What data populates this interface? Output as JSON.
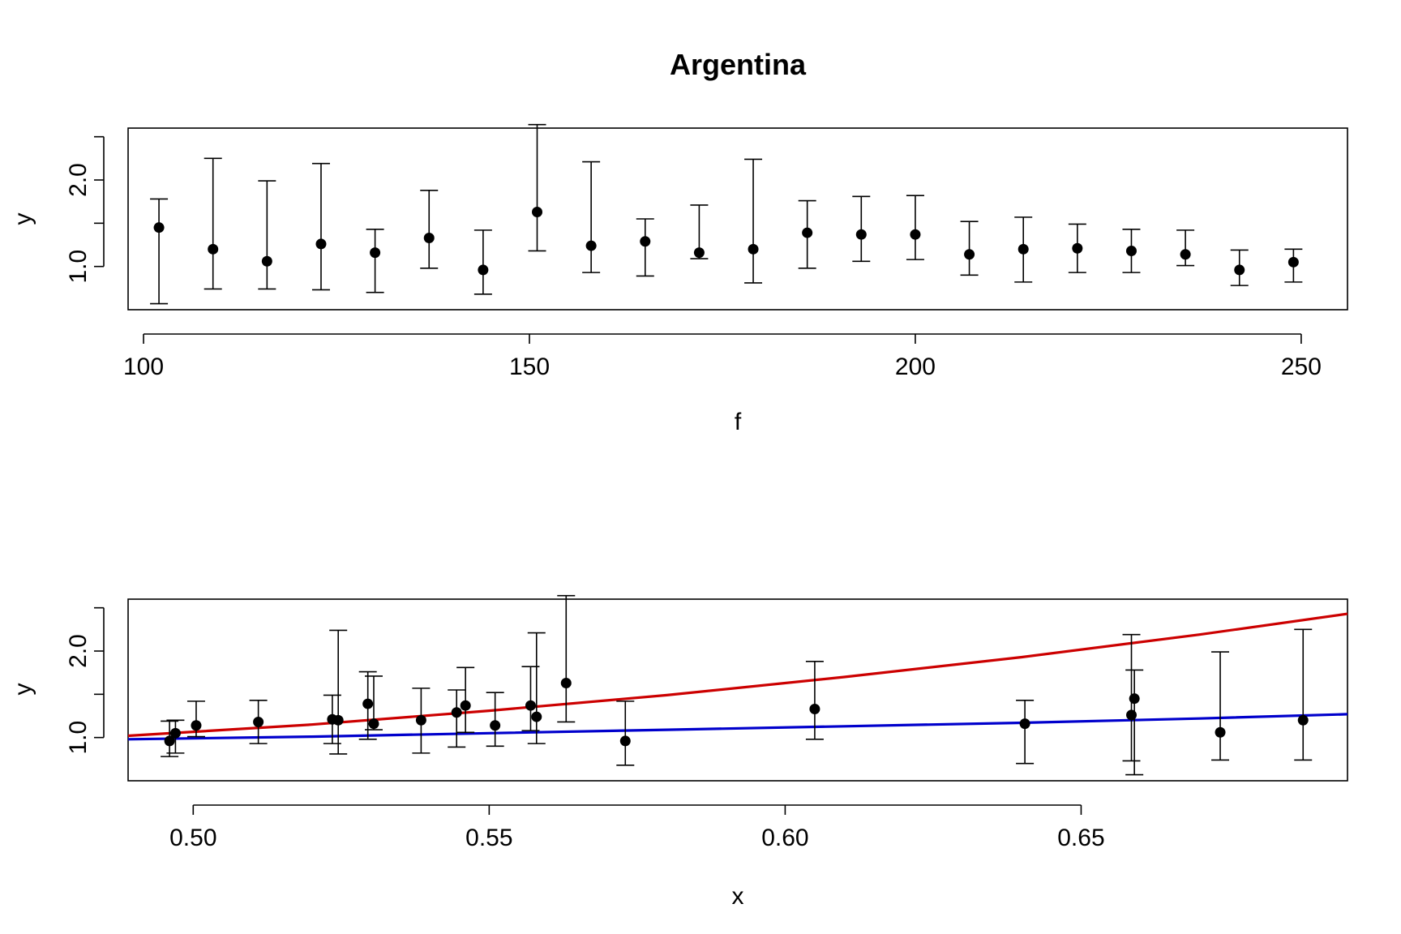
{
  "chart_data": [
    {
      "type": "scatter",
      "title": "Argentina",
      "xlabel": "f",
      "ylabel": "y",
      "xlim": [
        98,
        256
      ],
      "ylim": [
        0.5,
        2.6
      ],
      "xticks": [
        100,
        150,
        200,
        250
      ],
      "xtick_labels": [
        "100",
        "150",
        "200",
        "250"
      ],
      "yticks": [
        1.0,
        1.5,
        2.0,
        2.5
      ],
      "ytick_labels": [
        "1.0",
        "",
        "2.0",
        ""
      ],
      "grid": false,
      "error_bars": true,
      "points": [
        {
          "x": 102,
          "y": 1.45,
          "lo": 0.57,
          "hi": 1.78
        },
        {
          "x": 109,
          "y": 1.2,
          "lo": 0.74,
          "hi": 2.25
        },
        {
          "x": 116,
          "y": 1.06,
          "lo": 0.74,
          "hi": 1.99
        },
        {
          "x": 123,
          "y": 1.26,
          "lo": 0.73,
          "hi": 2.19
        },
        {
          "x": 130,
          "y": 1.16,
          "lo": 0.7,
          "hi": 1.43
        },
        {
          "x": 137,
          "y": 1.33,
          "lo": 0.98,
          "hi": 1.88
        },
        {
          "x": 144,
          "y": 0.96,
          "lo": 0.68,
          "hi": 1.42
        },
        {
          "x": 151,
          "y": 1.63,
          "lo": 1.18,
          "hi": 2.64
        },
        {
          "x": 158,
          "y": 1.24,
          "lo": 0.93,
          "hi": 2.21
        },
        {
          "x": 165,
          "y": 1.29,
          "lo": 0.89,
          "hi": 1.55
        },
        {
          "x": 172,
          "y": 1.16,
          "lo": 1.09,
          "hi": 1.71
        },
        {
          "x": 179,
          "y": 1.2,
          "lo": 0.81,
          "hi": 2.24
        },
        {
          "x": 186,
          "y": 1.39,
          "lo": 0.98,
          "hi": 1.76
        },
        {
          "x": 193,
          "y": 1.37,
          "lo": 1.06,
          "hi": 1.81
        },
        {
          "x": 200,
          "y": 1.37,
          "lo": 1.08,
          "hi": 1.82
        },
        {
          "x": 207,
          "y": 1.14,
          "lo": 0.9,
          "hi": 1.52
        },
        {
          "x": 214,
          "y": 1.2,
          "lo": 0.82,
          "hi": 1.57
        },
        {
          "x": 221,
          "y": 1.21,
          "lo": 0.93,
          "hi": 1.49
        },
        {
          "x": 228,
          "y": 1.18,
          "lo": 0.93,
          "hi": 1.43
        },
        {
          "x": 235,
          "y": 1.14,
          "lo": 1.01,
          "hi": 1.42
        },
        {
          "x": 242,
          "y": 0.96,
          "lo": 0.78,
          "hi": 1.19
        },
        {
          "x": 249,
          "y": 1.05,
          "lo": 0.82,
          "hi": 1.2
        }
      ]
    },
    {
      "type": "scatter",
      "title": "",
      "xlabel": "x",
      "ylabel": "y",
      "xlim": [
        0.489,
        0.695
      ],
      "ylim": [
        0.5,
        2.6
      ],
      "xticks": [
        0.5,
        0.55,
        0.6,
        0.65
      ],
      "xtick_labels": [
        "0.50",
        "0.55",
        "0.60",
        "0.65"
      ],
      "yticks": [
        1.0,
        1.5,
        2.0,
        2.5
      ],
      "ytick_labels": [
        "1.0",
        "",
        "2.0",
        ""
      ],
      "grid": false,
      "error_bars": true,
      "points": [
        {
          "x": 0.496,
          "y": 0.96,
          "lo": 0.78,
          "hi": 1.19
        },
        {
          "x": 0.497,
          "y": 1.05,
          "lo": 0.82,
          "hi": 1.2
        },
        {
          "x": 0.5005,
          "y": 1.14,
          "lo": 1.01,
          "hi": 1.42
        },
        {
          "x": 0.511,
          "y": 1.18,
          "lo": 0.93,
          "hi": 1.43
        },
        {
          "x": 0.5235,
          "y": 1.21,
          "lo": 0.93,
          "hi": 1.49
        },
        {
          "x": 0.5245,
          "y": 1.2,
          "lo": 0.81,
          "hi": 2.24
        },
        {
          "x": 0.5295,
          "y": 1.39,
          "lo": 0.98,
          "hi": 1.76
        },
        {
          "x": 0.5305,
          "y": 1.16,
          "lo": 1.09,
          "hi": 1.71
        },
        {
          "x": 0.5385,
          "y": 1.2,
          "lo": 0.82,
          "hi": 1.57
        },
        {
          "x": 0.5445,
          "y": 1.29,
          "lo": 0.89,
          "hi": 1.55
        },
        {
          "x": 0.546,
          "y": 1.37,
          "lo": 1.06,
          "hi": 1.81
        },
        {
          "x": 0.551,
          "y": 1.14,
          "lo": 0.9,
          "hi": 1.52
        },
        {
          "x": 0.557,
          "y": 1.37,
          "lo": 1.08,
          "hi": 1.82
        },
        {
          "x": 0.558,
          "y": 1.24,
          "lo": 0.93,
          "hi": 2.21
        },
        {
          "x": 0.563,
          "y": 1.63,
          "lo": 1.18,
          "hi": 2.64
        },
        {
          "x": 0.573,
          "y": 0.96,
          "lo": 0.68,
          "hi": 1.42
        },
        {
          "x": 0.605,
          "y": 1.33,
          "lo": 0.98,
          "hi": 1.88
        },
        {
          "x": 0.6405,
          "y": 1.16,
          "lo": 0.7,
          "hi": 1.43
        },
        {
          "x": 0.6585,
          "y": 1.26,
          "lo": 0.73,
          "hi": 2.19
        },
        {
          "x": 0.659,
          "y": 1.45,
          "lo": 0.57,
          "hi": 1.78
        },
        {
          "x": 0.6735,
          "y": 1.06,
          "lo": 0.74,
          "hi": 1.99
        },
        {
          "x": 0.6875,
          "y": 1.2,
          "lo": 0.74,
          "hi": 2.25
        }
      ],
      "lines": [
        {
          "color": "#cc0000",
          "x": [
            0.489,
            0.52,
            0.55,
            0.58,
            0.61,
            0.64,
            0.67,
            0.695
          ],
          "y": [
            1.02,
            1.15,
            1.31,
            1.49,
            1.7,
            1.93,
            2.19,
            2.43
          ]
        },
        {
          "color": "#0000cc",
          "x": [
            0.489,
            0.52,
            0.55,
            0.58,
            0.61,
            0.64,
            0.67,
            0.695
          ],
          "y": [
            0.98,
            1.01,
            1.05,
            1.09,
            1.13,
            1.17,
            1.22,
            1.27
          ]
        }
      ]
    }
  ]
}
